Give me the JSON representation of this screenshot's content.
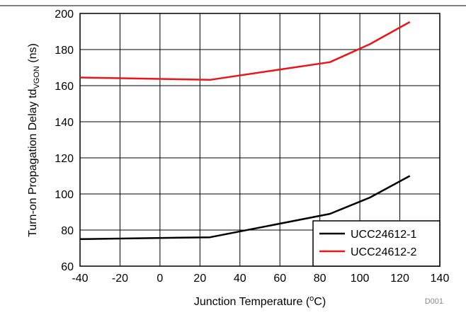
{
  "chart_data": {
    "type": "line",
    "title": "",
    "xlabel": {
      "main": "Junction Temperature (",
      "sup": "o",
      "tail": "C)"
    },
    "ylabel": {
      "main": "Turn-on Propagation Delay td",
      "sub": "VGON",
      "tail": " (ns)"
    },
    "xlim": [
      -40,
      140
    ],
    "ylim": [
      60,
      200
    ],
    "xticks": [
      -40,
      -20,
      0,
      20,
      40,
      60,
      80,
      100,
      120,
      140
    ],
    "yticks": [
      60,
      80,
      100,
      120,
      140,
      160,
      180,
      200
    ],
    "grid": true,
    "legend_position": "bottom-right",
    "series": [
      {
        "name": "UCC24612-1",
        "color": "#000000",
        "points": [
          [
            -40,
            75
          ],
          [
            25,
            76
          ],
          [
            85,
            89
          ],
          [
            105,
            98
          ],
          [
            125,
            110
          ]
        ]
      },
      {
        "name": "UCC24612-2",
        "color": "#e8161b",
        "points": [
          [
            -40,
            164.5
          ],
          [
            25,
            163.2
          ],
          [
            85,
            173
          ],
          [
            105,
            183
          ],
          [
            125,
            195.3
          ]
        ]
      }
    ],
    "figure_code": "D001"
  }
}
